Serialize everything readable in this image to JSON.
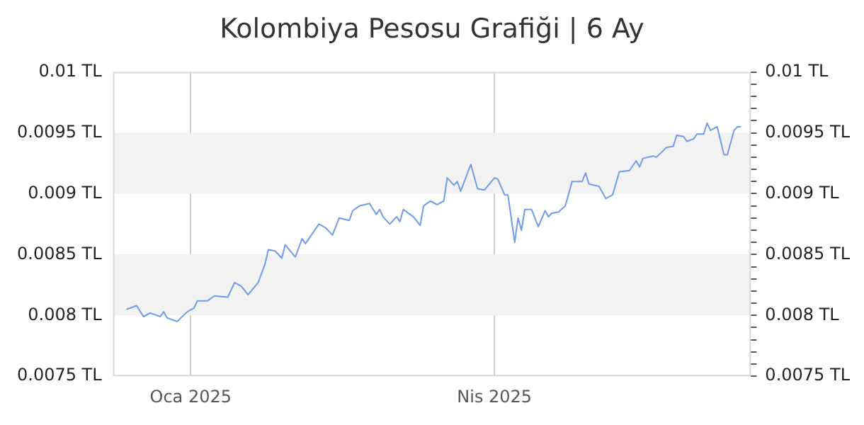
{
  "chart_data": {
    "type": "line",
    "title": "Kolombiya Pesosu Grafiği | 6 Ay",
    "x": [
      "2024-12-13",
      "2024-12-16",
      "2024-12-18",
      "2024-12-20",
      "2024-12-23",
      "2024-12-24",
      "2024-12-25",
      "2024-12-28",
      "2024-12-31",
      "2025-01-02",
      "2025-01-03",
      "2025-01-06",
      "2025-01-08",
      "2025-01-12",
      "2025-01-14",
      "2025-01-16",
      "2025-01-18",
      "2025-01-21",
      "2025-01-23",
      "2025-01-24",
      "2025-01-26",
      "2025-01-28",
      "2025-01-29",
      "2025-02-01",
      "2025-02-03",
      "2025-02-04",
      "2025-02-08",
      "2025-02-10",
      "2025-02-12",
      "2025-02-14",
      "2025-02-17",
      "2025-02-18",
      "2025-02-20",
      "2025-02-23",
      "2025-02-25",
      "2025-02-26",
      "2025-02-27",
      "2025-03-01",
      "2025-03-03",
      "2025-03-04",
      "2025-03-05",
      "2025-03-08",
      "2025-03-10",
      "2025-03-11",
      "2025-03-13",
      "2025-03-15",
      "2025-03-17",
      "2025-03-18",
      "2025-03-20",
      "2025-03-21",
      "2025-03-22",
      "2025-03-25",
      "2025-03-27",
      "2025-03-29",
      "2025-04-01",
      "2025-04-02",
      "2025-04-04",
      "2025-04-05",
      "2025-04-07",
      "2025-04-08",
      "2025-04-09",
      "2025-04-10",
      "2025-04-12",
      "2025-04-14",
      "2025-04-16",
      "2025-04-17",
      "2025-04-18",
      "2025-04-20",
      "2025-04-22",
      "2025-04-24",
      "2025-04-27",
      "2025-04-28",
      "2025-04-29",
      "2025-05-02",
      "2025-05-04",
      "2025-05-06",
      "2025-05-08",
      "2025-05-11",
      "2025-05-13",
      "2025-05-14",
      "2025-05-15",
      "2025-05-18",
      "2025-05-19",
      "2025-05-22",
      "2025-05-24",
      "2025-05-25",
      "2025-05-27",
      "2025-05-28",
      "2025-05-30",
      "2025-05-31",
      "2025-06-02",
      "2025-06-03",
      "2025-06-04",
      "2025-06-06",
      "2025-06-08",
      "2025-06-09",
      "2025-06-11",
      "2025-06-12",
      "2025-06-13"
    ],
    "series": [
      {
        "color": "#6f9be8",
        "values": [
          0.00805,
          0.00808,
          0.00799,
          0.00802,
          0.00799,
          0.00803,
          0.00798,
          0.00795,
          0.00803,
          0.00806,
          0.00812,
          0.00812,
          0.00816,
          0.00815,
          0.00827,
          0.00824,
          0.00817,
          0.00827,
          0.00842,
          0.00854,
          0.00853,
          0.00847,
          0.00858,
          0.00848,
          0.00863,
          0.00859,
          0.00875,
          0.00872,
          0.00866,
          0.0088,
          0.00878,
          0.00886,
          0.0089,
          0.00892,
          0.00883,
          0.00887,
          0.00881,
          0.00875,
          0.00881,
          0.00877,
          0.00887,
          0.00881,
          0.00874,
          0.0089,
          0.00894,
          0.00891,
          0.00894,
          0.00913,
          0.00907,
          0.0091,
          0.00902,
          0.00924,
          0.00904,
          0.00903,
          0.00913,
          0.00912,
          0.00899,
          0.00899,
          0.0086,
          0.0088,
          0.0087,
          0.00887,
          0.00887,
          0.00873,
          0.00886,
          0.00881,
          0.00884,
          0.00885,
          0.0089,
          0.0091,
          0.0091,
          0.00917,
          0.00908,
          0.00906,
          0.00896,
          0.00899,
          0.00918,
          0.00919,
          0.00927,
          0.00922,
          0.00929,
          0.00931,
          0.0093,
          0.00938,
          0.00939,
          0.00948,
          0.00947,
          0.00943,
          0.00945,
          0.00949,
          0.00949,
          0.00958,
          0.00952,
          0.00955,
          0.00932,
          0.00932,
          0.00952,
          0.00955,
          0.00955
        ]
      }
    ],
    "xlim": [
      "2024-12-09",
      "2025-06-16"
    ],
    "xticks": [
      {
        "value": "2025-01-01",
        "label": "Oca 2025"
      },
      {
        "value": "2025-04-01",
        "label": "Nis 2025"
      }
    ],
    "ylim": [
      0.0075,
      0.01
    ],
    "yticks": [
      {
        "value": 0.0075,
        "label": "0.0075 TL"
      },
      {
        "value": 0.008,
        "label": "0.008 TL"
      },
      {
        "value": 0.0085,
        "label": "0.0085 TL"
      },
      {
        "value": 0.009,
        "label": "0.009 TL"
      },
      {
        "value": 0.0095,
        "label": "0.0095 TL"
      },
      {
        "value": 0.01,
        "label": "0.01 TL"
      }
    ],
    "y2lim": [
      0.0075,
      0.01
    ],
    "y2ticks": [
      {
        "value": 0.0075,
        "label": "0.0075 TL"
      },
      {
        "value": 0.0076,
        "label": null
      },
      {
        "value": 0.0077,
        "label": null
      },
      {
        "value": 0.0078,
        "label": null
      },
      {
        "value": 0.0079,
        "label": null
      },
      {
        "value": 0.008,
        "label": "0.008 TL"
      },
      {
        "value": 0.0081,
        "label": null
      },
      {
        "value": 0.0082,
        "label": null
      },
      {
        "value": 0.0083,
        "label": null
      },
      {
        "value": 0.0084,
        "label": null
      },
      {
        "value": 0.0085,
        "label": "0.0085 TL"
      },
      {
        "value": 0.0086,
        "label": null
      },
      {
        "value": 0.0087,
        "label": null
      },
      {
        "value": 0.0088,
        "label": null
      },
      {
        "value": 0.0089,
        "label": null
      },
      {
        "value": 0.009,
        "label": "0.009 TL"
      },
      {
        "value": 0.0091,
        "label": null
      },
      {
        "value": 0.0092,
        "label": null
      },
      {
        "value": 0.0093,
        "label": null
      },
      {
        "value": 0.0094,
        "label": null
      },
      {
        "value": 0.0095,
        "label": "0.0095 TL"
      },
      {
        "value": 0.0096,
        "label": null
      },
      {
        "value": 0.0097,
        "label": null
      },
      {
        "value": 0.0098,
        "label": null
      },
      {
        "value": 0.0099,
        "label": null
      },
      {
        "value": 0.01,
        "label": "0.01 TL"
      }
    ],
    "bands": [
      {
        "axis": "y",
        "from": 0.008,
        "to": 0.0085,
        "color": "#f2f2f2"
      },
      {
        "axis": "y",
        "from": 0.009,
        "to": 0.0095,
        "color": "#f2f2f2"
      }
    ],
    "grid": "x",
    "legend": false,
    "marker": "none",
    "line_style": "solid"
  }
}
